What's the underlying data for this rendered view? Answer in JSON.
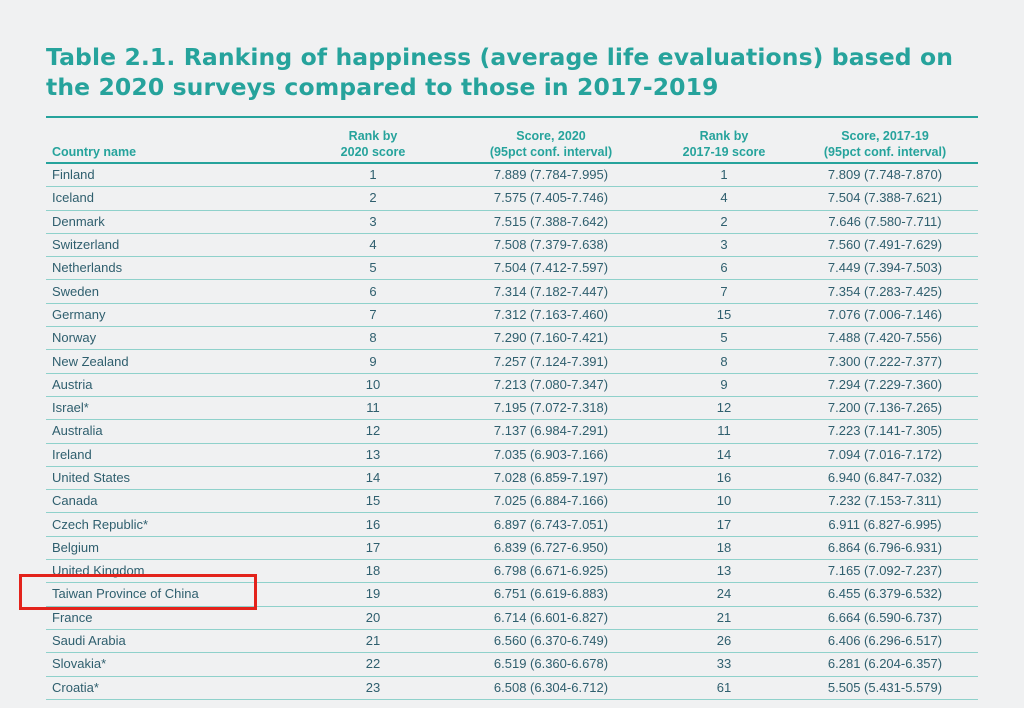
{
  "title": "Table 2.1. Ranking of happiness (average life evaluations) based on the 2020 surveys compared to those in 2017-2019",
  "columns": {
    "country": "Country name",
    "rank2020_l1": "Rank by",
    "rank2020_l2": "2020 score",
    "score2020_l1": "Score, 2020",
    "score2020_l2": "(95pct conf. interval)",
    "rank1719_l1": "Rank by",
    "rank1719_l2": "2017-19 score",
    "score1719_l1": "Score, 2017-19",
    "score1719_l2": "(95pct conf. interval)"
  },
  "rows": [
    {
      "country": "Finland",
      "rank2020": "1",
      "score2020": "7.889 (7.784-7.995)",
      "rank1719": "1",
      "score1719": "7.809 (7.748-7.870)"
    },
    {
      "country": "Iceland",
      "rank2020": "2",
      "score2020": "7.575 (7.405-7.746)",
      "rank1719": "4",
      "score1719": "7.504 (7.388-7.621)"
    },
    {
      "country": "Denmark",
      "rank2020": "3",
      "score2020": "7.515 (7.388-7.642)",
      "rank1719": "2",
      "score1719": "7.646 (7.580-7.711)"
    },
    {
      "country": "Switzerland",
      "rank2020": "4",
      "score2020": "7.508 (7.379-7.638)",
      "rank1719": "3",
      "score1719": "7.560 (7.491-7.629)"
    },
    {
      "country": "Netherlands",
      "rank2020": "5",
      "score2020": "7.504 (7.412-7.597)",
      "rank1719": "6",
      "score1719": "7.449 (7.394-7.503)"
    },
    {
      "country": "Sweden",
      "rank2020": "6",
      "score2020": "7.314 (7.182-7.447)",
      "rank1719": "7",
      "score1719": "7.354 (7.283-7.425)"
    },
    {
      "country": "Germany",
      "rank2020": "7",
      "score2020": "7.312 (7.163-7.460)",
      "rank1719": "15",
      "score1719": "7.076 (7.006-7.146)"
    },
    {
      "country": "Norway",
      "rank2020": "8",
      "score2020": "7.290 (7.160-7.421)",
      "rank1719": "5",
      "score1719": "7.488 (7.420-7.556)"
    },
    {
      "country": "New Zealand",
      "rank2020": "9",
      "score2020": "7.257 (7.124-7.391)",
      "rank1719": "8",
      "score1719": "7.300 (7.222-7.377)"
    },
    {
      "country": "Austria",
      "rank2020": "10",
      "score2020": "7.213 (7.080-7.347)",
      "rank1719": "9",
      "score1719": "7.294 (7.229-7.360)"
    },
    {
      "country": "Israel*",
      "rank2020": "11",
      "score2020": "7.195 (7.072-7.318)",
      "rank1719": "12",
      "score1719": "7.200 (7.136-7.265)"
    },
    {
      "country": "Australia",
      "rank2020": "12",
      "score2020": "7.137 (6.984-7.291)",
      "rank1719": "11",
      "score1719": "7.223 (7.141-7.305)"
    },
    {
      "country": "Ireland",
      "rank2020": "13",
      "score2020": "7.035 (6.903-7.166)",
      "rank1719": "14",
      "score1719": "7.094 (7.016-7.172)"
    },
    {
      "country": "United States",
      "rank2020": "14",
      "score2020": "7.028 (6.859-7.197)",
      "rank1719": "16",
      "score1719": "6.940 (6.847-7.032)"
    },
    {
      "country": "Canada",
      "rank2020": "15",
      "score2020": "7.025 (6.884-7.166)",
      "rank1719": "10",
      "score1719": "7.232 (7.153-7.311)"
    },
    {
      "country": "Czech Republic*",
      "rank2020": "16",
      "score2020": "6.897 (6.743-7.051)",
      "rank1719": "17",
      "score1719": "6.911 (6.827-6.995)"
    },
    {
      "country": "Belgium",
      "rank2020": "17",
      "score2020": "6.839 (6.727-6.950)",
      "rank1719": "18",
      "score1719": "6.864 (6.796-6.931)"
    },
    {
      "country": "United Kingdom",
      "rank2020": "18",
      "score2020": "6.798 (6.671-6.925)",
      "rank1719": "13",
      "score1719": "7.165 (7.092-7.237)"
    },
    {
      "country": "Taiwan Province of China",
      "rank2020": "19",
      "score2020": "6.751 (6.619-6.883)",
      "rank1719": "24",
      "score1719": "6.455 (6.379-6.532)"
    },
    {
      "country": "France",
      "rank2020": "20",
      "score2020": "6.714 (6.601-6.827)",
      "rank1719": "21",
      "score1719": "6.664 (6.590-6.737)"
    },
    {
      "country": "Saudi Arabia",
      "rank2020": "21",
      "score2020": "6.560 (6.370-6.749)",
      "rank1719": "26",
      "score1719": "6.406 (6.296-6.517)"
    },
    {
      "country": "Slovakia*",
      "rank2020": "22",
      "score2020": "6.519 (6.360-6.678)",
      "rank1719": "33",
      "score1719": "6.281 (6.204-6.357)"
    },
    {
      "country": "Croatia*",
      "rank2020": "23",
      "score2020": "6.508 (6.304-6.712)",
      "rank1719": "61",
      "score1719": "5.505 (5.431-5.579)"
    }
  ],
  "highlight_color": "#e3231c",
  "accent_color": "#26a39c"
}
